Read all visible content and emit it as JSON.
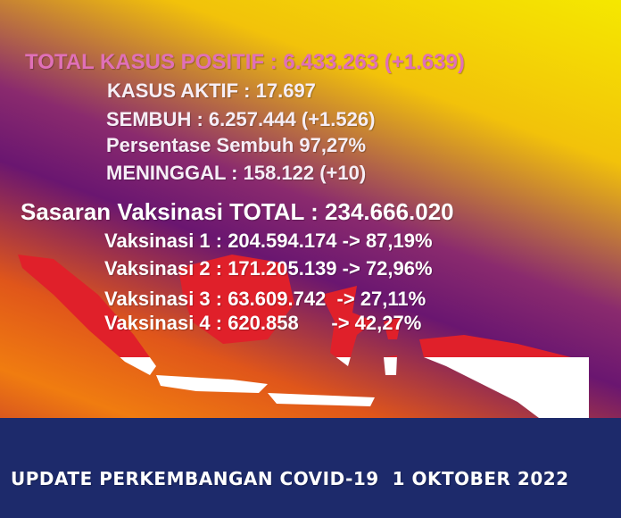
{
  "headline": {
    "total_kasus": "TOTAL KASUS POSITIF : 6.433.263 (+1.639)",
    "kasus_aktif": "KASUS AKTIF : 17.697",
    "sembuh": "SEMBUH : 6.257.444 (+1.526)",
    "persentase_sembuh": "Persentase Sembuh 97,27%",
    "meninggal": "MENINGGAL : 158.122 (+10)"
  },
  "vaksinasi": {
    "sasaran": "Sasaran Vaksinasi TOTAL : 234.666.020",
    "items": [
      "Vaksinasi 1 : 204.594.174 -> 87,19%",
      "Vaksinasi 2 : 171.205.139 -> 72,96%",
      "Vaksinasi 3 : 63.609.742  -> 27,11%",
      "Vaksinasi 4 : 620.858      -> 42,27%"
    ]
  },
  "footer": "UPDATE PERKEMBANGAN COVID-19  1 OKTOBER 2022",
  "colors": {
    "title_pink": "#e070b8",
    "band_navy": "#1d2a6b",
    "flag_red": "#e0202a",
    "flag_white": "#ffffff"
  }
}
